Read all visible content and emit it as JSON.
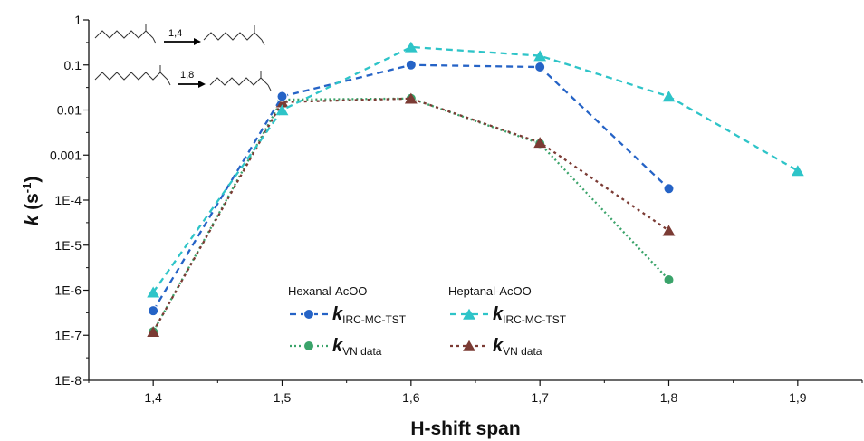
{
  "chart_data": {
    "type": "line",
    "xlabel": "H-shift span",
    "ylabel": {
      "main": "k",
      "unit_open": " (s",
      "unit_exp": "-1",
      "unit_close": ")"
    },
    "y_scale": "log",
    "ylim": [
      1e-08,
      1
    ],
    "xlim": [
      1.35,
      1.95
    ],
    "x_ticks": [
      {
        "value": 1.4,
        "label": "1,4"
      },
      {
        "value": 1.5,
        "label": "1,5"
      },
      {
        "value": 1.6,
        "label": "1,6"
      },
      {
        "value": 1.7,
        "label": "1,7"
      },
      {
        "value": 1.8,
        "label": "1,8"
      },
      {
        "value": 1.9,
        "label": "1,9"
      }
    ],
    "y_ticks": [
      {
        "value": 1,
        "label": "1"
      },
      {
        "value": 0.1,
        "label": "0.1"
      },
      {
        "value": 0.01,
        "label": "0.01"
      },
      {
        "value": 0.001,
        "label": "0.001"
      },
      {
        "value": 0.0001,
        "label": "1E-4"
      },
      {
        "value": 1e-05,
        "label": "1E-5"
      },
      {
        "value": 1e-06,
        "label": "1E-6"
      },
      {
        "value": 1e-07,
        "label": "1E-7"
      },
      {
        "value": 1e-08,
        "label": "1E-8"
      }
    ],
    "grid": false,
    "legend_groups": [
      "Hexanal-AcOO",
      "Heptanal-AcOO"
    ],
    "series": [
      {
        "group": "Hexanal-AcOO",
        "label_main": "k",
        "label_sub": "IRC-MC-TST",
        "color": "#2563c6",
        "dash": "7,5",
        "marker": "circle",
        "x": [
          1.4,
          1.5,
          1.6,
          1.7,
          1.8
        ],
        "y": [
          3.5e-07,
          0.02,
          0.1,
          0.09,
          0.00018
        ]
      },
      {
        "group": "Heptanal-AcOO",
        "label_main": "k",
        "label_sub": "IRC-MC-TST",
        "color": "#2ec4c8",
        "dash": "7,5",
        "marker": "triangle",
        "x": [
          1.4,
          1.5,
          1.6,
          1.7,
          1.8,
          1.9
        ],
        "y": [
          9e-07,
          0.01,
          0.25,
          0.16,
          0.02,
          0.00045
        ]
      },
      {
        "group": "Hexanal-AcOO",
        "label_main": "k",
        "label_sub": "VN data",
        "color": "#3aa36a",
        "dash": "2,3",
        "marker": "circle",
        "x": [
          1.4,
          1.5,
          1.6,
          1.7,
          1.8
        ],
        "y": [
          1.2e-07,
          0.017,
          0.018,
          0.0018,
          1.7e-06
        ]
      },
      {
        "group": "Heptanal-AcOO",
        "label_main": "k",
        "label_sub": "VN data",
        "color": "#7b3b34",
        "dash": "3,4",
        "marker": "triangle",
        "x": [
          1.4,
          1.5,
          1.6,
          1.7,
          1.8
        ],
        "y": [
          1.2e-07,
          0.015,
          0.018,
          0.0019,
          2.1e-05
        ]
      }
    ],
    "annotations": [
      "1,4",
      "1,8"
    ]
  }
}
